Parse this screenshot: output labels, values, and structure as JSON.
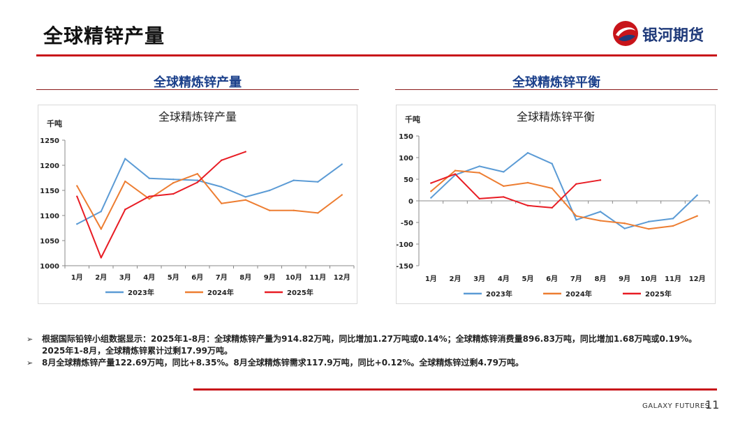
{
  "header": {
    "title": "全球精锌产量",
    "brand_name": "银河期货"
  },
  "sections": {
    "left_title": "全球精炼锌产量",
    "right_title": "全球精炼锌平衡"
  },
  "colors": {
    "accent_red": "#c8141a",
    "series_2023": "#5b9bd5",
    "series_2024": "#ed7d31",
    "series_2025": "#e81c24",
    "title_blue": "#1a3f8a"
  },
  "chart_data": [
    {
      "type": "line",
      "title": "全球精炼锌产量",
      "ylabel": "千吨",
      "xlabel": "",
      "categories": [
        "1月",
        "2月",
        "3月",
        "4月",
        "5月",
        "6月",
        "7月",
        "8月",
        "9月",
        "10月",
        "11月",
        "12月"
      ],
      "ylim": [
        1000,
        1250
      ],
      "yticks": [
        1000,
        1050,
        1100,
        1150,
        1200,
        1250
      ],
      "legend_position": "bottom",
      "series": [
        {
          "name": "2023年",
          "values": [
            1083,
            1108,
            1213,
            1174,
            1172,
            1170,
            1157,
            1137,
            1150,
            1170,
            1167,
            1202
          ]
        },
        {
          "name": "2024年",
          "values": [
            1159,
            1073,
            1168,
            1133,
            1165,
            1183,
            1124,
            1131,
            1110,
            1110,
            1105,
            1141
          ]
        },
        {
          "name": "2025年",
          "values": [
            1138,
            1016,
            1112,
            1138,
            1143,
            1166,
            1210,
            1227,
            null,
            null,
            null,
            null
          ]
        }
      ]
    },
    {
      "type": "line",
      "title": "全球精炼锌平衡",
      "ylabel": "千吨",
      "xlabel": "",
      "categories": [
        "1月",
        "2月",
        "3月",
        "4月",
        "5月",
        "6月",
        "7月",
        "8月",
        "9月",
        "10月",
        "11月",
        "12月"
      ],
      "ylim": [
        -150,
        150
      ],
      "yticks": [
        -150,
        -100,
        -50,
        0,
        50,
        100,
        150
      ],
      "legend_position": "bottom",
      "series": [
        {
          "name": "2023年",
          "values": [
            7,
            60,
            80,
            67,
            111,
            86,
            -44,
            -25,
            -64,
            -48,
            -41,
            13
          ]
        },
        {
          "name": "2024年",
          "values": [
            22,
            70,
            65,
            34,
            42,
            29,
            -35,
            -46,
            -52,
            -65,
            -58,
            -35
          ]
        },
        {
          "name": "2025年",
          "values": [
            41,
            62,
            5,
            9,
            -11,
            -16,
            39,
            48,
            null,
            null,
            null,
            null
          ]
        }
      ]
    }
  ],
  "bullets": [
    "根据国际铅锌小组数据显示：2025年1-8月：全球精炼锌产量为914.82万吨，同比增加1.27万吨或0.14%；全球精炼锌消费量896.83万吨，同比增加1.68万吨或0.19%。2025年1-8月，全球精炼锌累计过剩17.99万吨。",
    "8月全球精炼锌产量122.69万吨，同比+8.35%。8月全球精炼锌需求117.9万吨，同比+0.12%。全球精炼锌过剩4.79万吨。"
  ],
  "bullet_marker": "➢",
  "footer": {
    "brand": "GALAXY FUTURES",
    "page_number": "11"
  }
}
